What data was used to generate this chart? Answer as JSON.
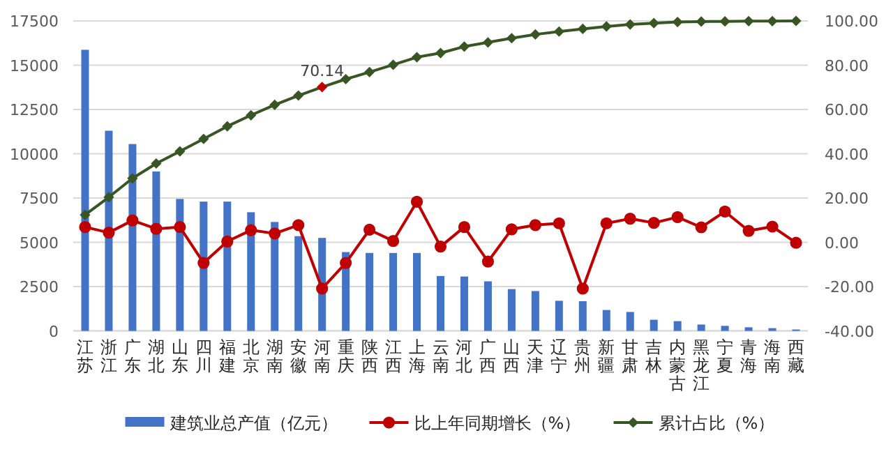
{
  "chart_data": {
    "type": "bar",
    "categories": [
      "江苏",
      "浙江",
      "广东",
      "湖北",
      "山东",
      "四川",
      "福建",
      "北京",
      "湖南",
      "安徽",
      "河南",
      "重庆",
      "陕西",
      "江西",
      "上海",
      "云南",
      "河北",
      "广西",
      "山西",
      "天津",
      "辽宁",
      "贵州",
      "新疆",
      "甘肃",
      "吉林",
      "内蒙古",
      "黑龙江",
      "宁夏",
      "青海",
      "海南",
      "西藏"
    ],
    "series": [
      {
        "name": "建筑业总产值（亿元）",
        "color": "#4472c4",
        "values": [
          15870,
          11300,
          10550,
          9000,
          7450,
          7300,
          7300,
          6700,
          6150,
          5350,
          5250,
          4450,
          4400,
          4400,
          4400,
          3100,
          3070,
          2800,
          2360,
          2250,
          1700,
          1680,
          1180,
          1070,
          630,
          550,
          360,
          285,
          205,
          155,
          80
        ]
      },
      {
        "name": "比上年同期增长（%）",
        "type": "line",
        "axis": "y2",
        "color": "#c00000",
        "marker": "circle",
        "values": [
          6.9,
          4.4,
          9.9,
          6.1,
          6.9,
          -9.3,
          0.4,
          5.5,
          4.0,
          7.8,
          -20.9,
          -9.3,
          5.7,
          0.6,
          18.3,
          -1.9,
          6.9,
          -8.7,
          5.9,
          7.8,
          8.6,
          -20.9,
          8.6,
          10.7,
          8.8,
          11.4,
          6.8,
          13.9,
          5.2,
          7.1,
          -0.2
        ]
      },
      {
        "name": "累计占比（%）",
        "type": "line",
        "axis": "y2",
        "color": "#375623",
        "marker": "diamond",
        "value_labels": [
          null,
          null,
          null,
          null,
          null,
          null,
          null,
          null,
          null,
          null,
          "70.14",
          null,
          null,
          null,
          null,
          null,
          null,
          null,
          null,
          null,
          null,
          null,
          null,
          null,
          null,
          null,
          null,
          null,
          null,
          null,
          null
        ],
        "colors": [
          "#375623",
          "#375623",
          "#375623",
          "#375623",
          "#375623",
          "#375623",
          "#375623",
          "#375623",
          "#375623",
          "#375623",
          "#c00000",
          "#375623",
          "#375623",
          "#375623",
          "#375623",
          "#375623",
          "#375623",
          "#375623",
          "#375623",
          "#375623",
          "#375623",
          "#375623",
          "#375623",
          "#375623",
          "#375623",
          "#375623",
          "#375623",
          "#375623",
          "#375623",
          "#375623",
          "#375623"
        ],
        "values": [
          12.4,
          20.4,
          28.9,
          35.6,
          41.1,
          46.7,
          52.4,
          57.4,
          62.1,
          66.3,
          70.14,
          73.7,
          76.9,
          80.2,
          83.6,
          85.5,
          88.4,
          90.3,
          92.2,
          93.9,
          95.2,
          96.4,
          97.5,
          98.4,
          99.0,
          99.5,
          99.7,
          99.8,
          99.9,
          99.9,
          100
        ]
      }
    ],
    "ylim": [
      0,
      17500
    ],
    "yticks": [
      0,
      2500,
      5000,
      7500,
      10000,
      12500,
      15000,
      17500
    ],
    "y2lim": [
      -40,
      100
    ],
    "y2ticks": [
      {
        "value": -40,
        "label": "-40.00"
      },
      {
        "value": -20,
        "label": "-20.00"
      },
      {
        "value": 0,
        "label": "0.00"
      },
      {
        "value": 20,
        "label": "20.00"
      },
      {
        "value": 40,
        "label": "40.00"
      },
      {
        "value": 60,
        "label": "60.00"
      },
      {
        "value": 80,
        "label": "80.00"
      },
      {
        "value": 100,
        "label": "100.00"
      }
    ],
    "grid": "y",
    "legend": "bottom",
    "line_style": "solid"
  }
}
